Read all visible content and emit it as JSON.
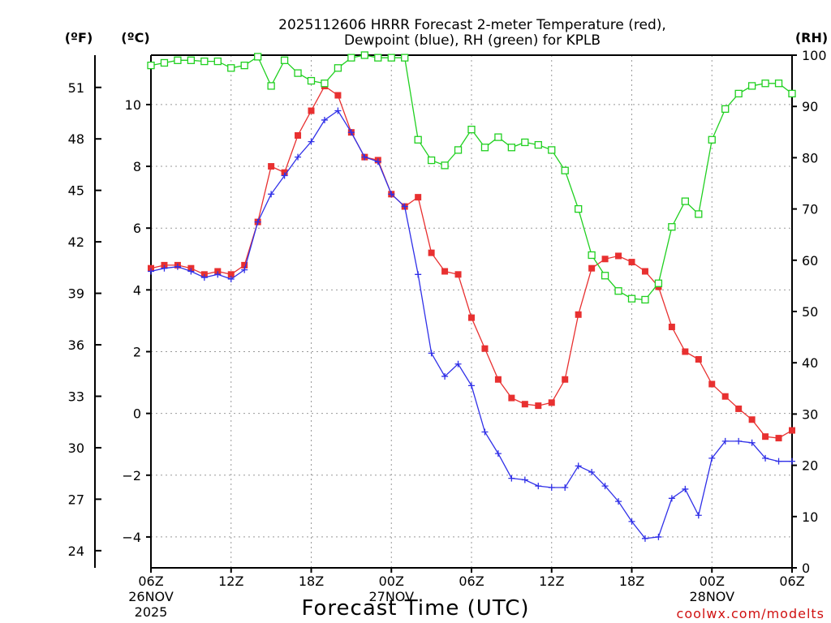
{
  "chart_data": {
    "type": "line",
    "title_line1": "2025112606 HRRR Forecast 2-meter Temperature (red),",
    "title_line2": "Dewpoint (blue), RH (green) for KPLB",
    "xlabel": "Forecast Time (UTC)",
    "credit": "coolwx.com/modelts",
    "unit_f": "(ºF)",
    "unit_c": "(ºC)",
    "unit_rh": "(RH)",
    "x_range_hours": [
      0,
      48
    ],
    "x_ticks": [
      {
        "h": 0,
        "label": "06Z",
        "date": "26NOV",
        "year": "2025"
      },
      {
        "h": 6,
        "label": "12Z"
      },
      {
        "h": 12,
        "label": "18Z"
      },
      {
        "h": 18,
        "label": "00Z",
        "date": "27NOV"
      },
      {
        "h": 24,
        "label": "06Z"
      },
      {
        "h": 30,
        "label": "12Z"
      },
      {
        "h": 36,
        "label": "18Z"
      },
      {
        "h": 42,
        "label": "00Z",
        "date": "28NOV"
      },
      {
        "h": 48,
        "label": "06Z"
      }
    ],
    "c_axis": {
      "range": [
        -5.0,
        11.6
      ],
      "ticks": [
        10,
        8,
        6,
        4,
        2,
        0,
        -2,
        -4
      ]
    },
    "f_axis": {
      "ticks": [
        51,
        48,
        45,
        42,
        39,
        36,
        33,
        30,
        27,
        24
      ]
    },
    "rh_axis": {
      "range": [
        0,
        100
      ],
      "ticks": [
        100,
        90,
        80,
        70,
        60,
        50,
        40,
        30,
        20,
        10,
        0
      ]
    },
    "series": [
      {
        "name": "Temperature",
        "unit": "C",
        "color": "#e83030",
        "marker": "filled-square",
        "values": [
          4.7,
          4.8,
          4.8,
          4.7,
          4.5,
          4.6,
          4.5,
          4.8,
          6.2,
          8.0,
          7.8,
          9.0,
          9.8,
          10.6,
          10.3,
          9.1,
          8.3,
          8.2,
          7.1,
          6.7,
          7.0,
          5.2,
          4.6,
          4.5,
          3.1,
          2.1,
          1.1,
          0.5,
          0.3,
          0.25,
          0.35,
          1.1,
          3.2,
          4.7,
          5.0,
          5.1,
          4.9,
          4.6,
          4.1,
          2.8,
          2.0,
          1.75,
          0.95,
          0.55,
          0.15,
          -0.2,
          -0.75,
          -0.8,
          -0.55
        ]
      },
      {
        "name": "Dewpoint",
        "unit": "C",
        "color": "#3030e8",
        "marker": "plus",
        "values": [
          4.6,
          4.7,
          4.75,
          4.6,
          4.4,
          4.5,
          4.35,
          4.65,
          6.2,
          7.1,
          7.7,
          8.3,
          8.8,
          9.5,
          9.8,
          9.1,
          8.3,
          8.15,
          7.1,
          6.7,
          4.5,
          1.95,
          1.2,
          1.6,
          0.9,
          -0.6,
          -1.3,
          -2.1,
          -2.15,
          -2.35,
          -2.4,
          -2.4,
          -1.7,
          -1.9,
          -2.35,
          -2.85,
          -3.5,
          -4.05,
          -4.0,
          -2.75,
          -2.45,
          -3.3,
          -1.45,
          -0.9,
          -0.9,
          -0.95,
          -1.45,
          -1.55,
          -1.55
        ]
      },
      {
        "name": "RH",
        "unit": "%",
        "color": "#20d020",
        "marker": "open-square",
        "values": [
          98,
          98.5,
          99,
          99,
          98.8,
          98.8,
          97.5,
          98,
          99.7,
          94,
          99,
          96.5,
          95,
          94.5,
          97.5,
          99.5,
          100,
          99.5,
          99.5,
          99.5,
          83.5,
          79.5,
          78.5,
          81.5,
          85.5,
          82,
          84,
          82,
          83,
          82.5,
          81.5,
          77.5,
          70,
          61,
          57,
          54,
          52.5,
          52.3,
          55.5,
          66.5,
          71.5,
          69,
          83.5,
          89.5,
          92.5,
          94,
          94.5,
          94.5,
          92.5
        ]
      }
    ]
  }
}
